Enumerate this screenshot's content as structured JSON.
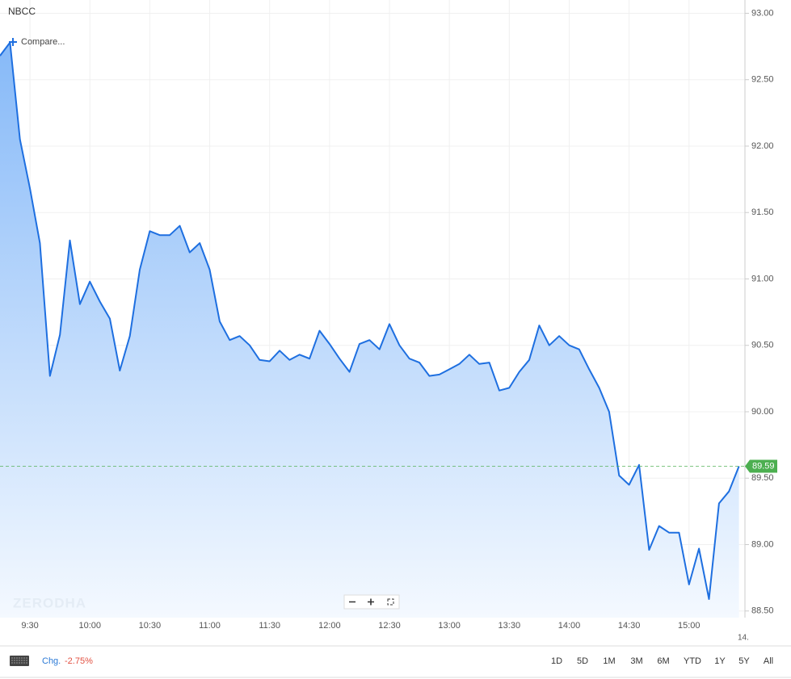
{
  "chart_data": {
    "type": "area",
    "title": "NBCC",
    "compare": "Compare...",
    "watermark": "ZERODHA",
    "corner_label": "14.",
    "change_label": "Chg.",
    "change": "-2.75%",
    "ranges": [
      "1D",
      "5D",
      "1M",
      "3M",
      "6M",
      "YTD",
      "1Y",
      "5Y",
      "All"
    ],
    "last_price": 89.59,
    "last_price_color": "#4caf50",
    "grid": true,
    "x": [
      555,
      560,
      565,
      570,
      575,
      580,
      585,
      590,
      595,
      600,
      605,
      610,
      615,
      620,
      625,
      630,
      635,
      640,
      645,
      650,
      655,
      660,
      665,
      670,
      675,
      680,
      685,
      690,
      695,
      700,
      705,
      710,
      715,
      720,
      725,
      730,
      735,
      740,
      745,
      750,
      755,
      760,
      765,
      770,
      775,
      780,
      785,
      790,
      795,
      800,
      805,
      810,
      815,
      820,
      825,
      830,
      835,
      840,
      845,
      850,
      855,
      860,
      865,
      870,
      875,
      880,
      885,
      890,
      895,
      900,
      905,
      910,
      915,
      920,
      925
    ],
    "series": [
      {
        "color": "#1e6fe0",
        "values": [
          92.68,
          92.78,
          92.05,
          91.68,
          91.27,
          90.27,
          90.58,
          91.29,
          90.81,
          90.98,
          90.83,
          90.7,
          90.31,
          90.57,
          91.07,
          91.36,
          91.33,
          91.33,
          91.4,
          91.2,
          91.27,
          91.07,
          90.68,
          90.54,
          90.57,
          90.5,
          90.39,
          90.38,
          90.46,
          90.39,
          90.43,
          90.4,
          90.61,
          90.51,
          90.4,
          90.3,
          90.51,
          90.54,
          90.47,
          90.66,
          90.5,
          90.4,
          90.37,
          90.27,
          90.28,
          90.32,
          90.36,
          90.43,
          90.36,
          90.37,
          90.16,
          90.18,
          90.3,
          90.39,
          90.65,
          90.5,
          90.57,
          90.5,
          90.47,
          90.32,
          90.18,
          90.0,
          89.52,
          89.45,
          89.6,
          88.96,
          89.14,
          89.09,
          89.09,
          88.7,
          88.97,
          88.59,
          89.31,
          89.4,
          89.59
        ]
      }
    ],
    "xlim": [
      555,
      928
    ],
    "xticks": [
      {
        "value": 570,
        "label": "9:30"
      },
      {
        "value": 600,
        "label": "10:00"
      },
      {
        "value": 630,
        "label": "10:30"
      },
      {
        "value": 660,
        "label": "11:00"
      },
      {
        "value": 690,
        "label": "11:30"
      },
      {
        "value": 720,
        "label": "12:00"
      },
      {
        "value": 750,
        "label": "12:30"
      },
      {
        "value": 780,
        "label": "13:00"
      },
      {
        "value": 810,
        "label": "13:30"
      },
      {
        "value": 840,
        "label": "14:00"
      },
      {
        "value": 870,
        "label": "14:30"
      },
      {
        "value": 900,
        "label": "15:00"
      }
    ],
    "ylim": [
      88.45,
      93.1
    ],
    "yticks": [
      {
        "value": 88.5,
        "label": "88.50"
      },
      {
        "value": 89,
        "label": "89.00"
      },
      {
        "value": 89.5,
        "label": "89.50"
      },
      {
        "value": 90,
        "label": "90.00"
      },
      {
        "value": 90.5,
        "label": "90.50"
      },
      {
        "value": 91,
        "label": "91.00"
      },
      {
        "value": 91.5,
        "label": "91.50"
      },
      {
        "value": 92,
        "label": "92.00"
      },
      {
        "value": 92.5,
        "label": "92.50"
      },
      {
        "value": 93,
        "label": "93.00"
      }
    ]
  }
}
